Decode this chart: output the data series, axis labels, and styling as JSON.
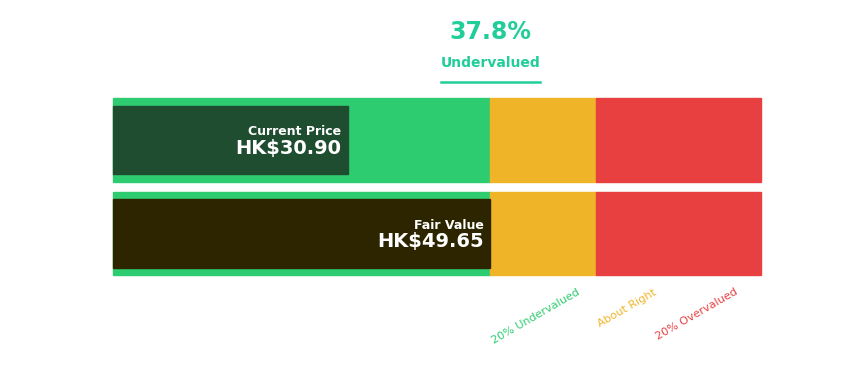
{
  "title_pct": "37.8%",
  "title_label": "Undervalued",
  "title_color": "#21ce99",
  "title_line_color": "#21ce99",
  "current_price_label": "Current Price",
  "current_price_value": "HK$30.90",
  "fair_value_label": "Fair Value",
  "fair_value_value": "HK$49.65",
  "bg_color": "#ffffff",
  "bar_bg_light_green": "#2ecc71",
  "bar_bg_orange": "#f0b429",
  "bar_bg_red": "#e84040",
  "current_price_box_color": "#1e4d30",
  "fair_value_box_color": "#2d2500",
  "zone_labels": [
    "20% Undervalued",
    "About Right",
    "20% Overvalued"
  ],
  "zone_label_colors": [
    "#2ecc71",
    "#f0b429",
    "#e84040"
  ],
  "green_pct": 0.582,
  "orange_pct": 0.163,
  "red_pct": 0.255,
  "current_price_pct": 0.362,
  "fair_value_pct": 0.582
}
